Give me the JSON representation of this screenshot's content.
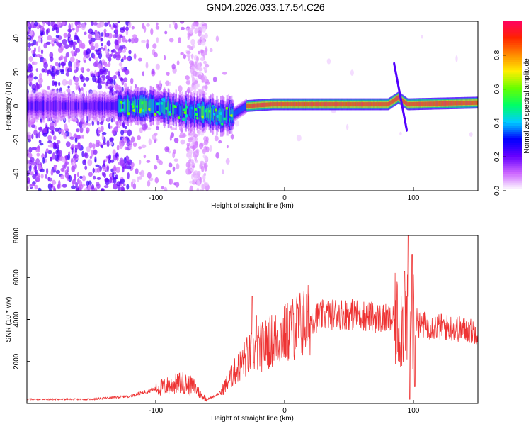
{
  "title": "GN04.2026.033.17.54.C26",
  "chart_data": [
    {
      "type": "heatmap",
      "xlabel": "Height of straight line (km)",
      "ylabel": "Frequency (Hz)",
      "xlim": [
        -200,
        150
      ],
      "ylim": [
        -50,
        50
      ],
      "xticks": [
        {
          "v": -100,
          "label": "-100"
        },
        {
          "v": 0,
          "label": "0"
        },
        {
          "v": 100,
          "label": "100"
        }
      ],
      "yticks": [
        {
          "v": -40,
          "label": "-40"
        },
        {
          "v": -20,
          "label": "-20"
        },
        {
          "v": 0,
          "label": "0"
        },
        {
          "v": 20,
          "label": "20"
        },
        {
          "v": 40,
          "label": "40"
        }
      ],
      "colorbar": {
        "label": "Normalized spectral amplitude",
        "range": [
          0,
          1
        ],
        "ticks": [
          {
            "v": 0.0,
            "label": "0.0"
          },
          {
            "v": 0.2,
            "label": "0.2"
          },
          {
            "v": 0.4,
            "label": "0.4"
          },
          {
            "v": 0.6,
            "label": "0.6"
          },
          {
            "v": 0.8,
            "label": "0.8"
          }
        ],
        "colormap": [
          "#ffffff",
          "#cc66ff",
          "#6600ff",
          "#0000ff",
          "#00ccff",
          "#00ff66",
          "#66ff00",
          "#ffee00",
          "#ff8800",
          "#ff2200",
          "#ff0066"
        ]
      },
      "ridge": {
        "description_points": [
          {
            "x": -200,
            "y": 0
          },
          {
            "x": -130,
            "y": 0
          },
          {
            "x": -100,
            "y": 0
          },
          {
            "x": -80,
            "y": -3
          },
          {
            "x": -60,
            "y": -4
          },
          {
            "x": -50,
            "y": -6
          },
          {
            "x": -40,
            "y": -5
          },
          {
            "x": -30,
            "y": 0
          },
          {
            "x": -10,
            "y": 1
          },
          {
            "x": 0,
            "y": 1
          },
          {
            "x": 50,
            "y": 1
          },
          {
            "x": 80,
            "y": 1
          },
          {
            "x": 88,
            "y": 5
          },
          {
            "x": 95,
            "y": 1
          },
          {
            "x": 150,
            "y": 2
          }
        ]
      },
      "streak": {
        "from": {
          "x": 85,
          "y": 25
        },
        "to": {
          "x": 95,
          "y": -15
        }
      }
    },
    {
      "type": "line",
      "xlabel": "Height of straight line (km)",
      "ylabel": "SNR (10 * v/v)",
      "xlim": [
        -200,
        150
      ],
      "ylim": [
        0,
        8000
      ],
      "xticks": [
        {
          "v": -100,
          "label": "-100"
        },
        {
          "v": 0,
          "label": "0"
        },
        {
          "v": 100,
          "label": "100"
        }
      ],
      "yticks": [
        {
          "v": 2000,
          "label": "2000"
        },
        {
          "v": 4000,
          "label": "4000"
        },
        {
          "v": 6000,
          "label": "6000"
        },
        {
          "v": 8000,
          "label": "8000"
        }
      ],
      "color": "#ee3333",
      "envelope": [
        {
          "x": -200,
          "y": 200
        },
        {
          "x": -150,
          "y": 200
        },
        {
          "x": -120,
          "y": 350
        },
        {
          "x": -100,
          "y": 700
        },
        {
          "x": -80,
          "y": 1000
        },
        {
          "x": -70,
          "y": 800
        },
        {
          "x": -65,
          "y": 400
        },
        {
          "x": -60,
          "y": 200
        },
        {
          "x": -50,
          "y": 500
        },
        {
          "x": -40,
          "y": 1400
        },
        {
          "x": -30,
          "y": 2200
        },
        {
          "x": -20,
          "y": 2600
        },
        {
          "x": -10,
          "y": 3000
        },
        {
          "x": 0,
          "y": 3300
        },
        {
          "x": 10,
          "y": 3700
        },
        {
          "x": 20,
          "y": 4000
        },
        {
          "x": 30,
          "y": 4200
        },
        {
          "x": 40,
          "y": 4300
        },
        {
          "x": 60,
          "y": 4200
        },
        {
          "x": 80,
          "y": 4000
        },
        {
          "x": 90,
          "y": 3800
        },
        {
          "x": 100,
          "y": 3900
        },
        {
          "x": 110,
          "y": 3700
        },
        {
          "x": 130,
          "y": 3600
        },
        {
          "x": 150,
          "y": 3400
        }
      ],
      "spikes": [
        {
          "x": -25,
          "y": 5100
        },
        {
          "x": -22,
          "y": 4200
        },
        {
          "x": 93,
          "y": 6300
        },
        {
          "x": 96,
          "y": 8000
        },
        {
          "x": 97,
          "y": 200
        },
        {
          "x": 99,
          "y": 7100
        },
        {
          "x": 101,
          "y": 800
        }
      ]
    }
  ]
}
